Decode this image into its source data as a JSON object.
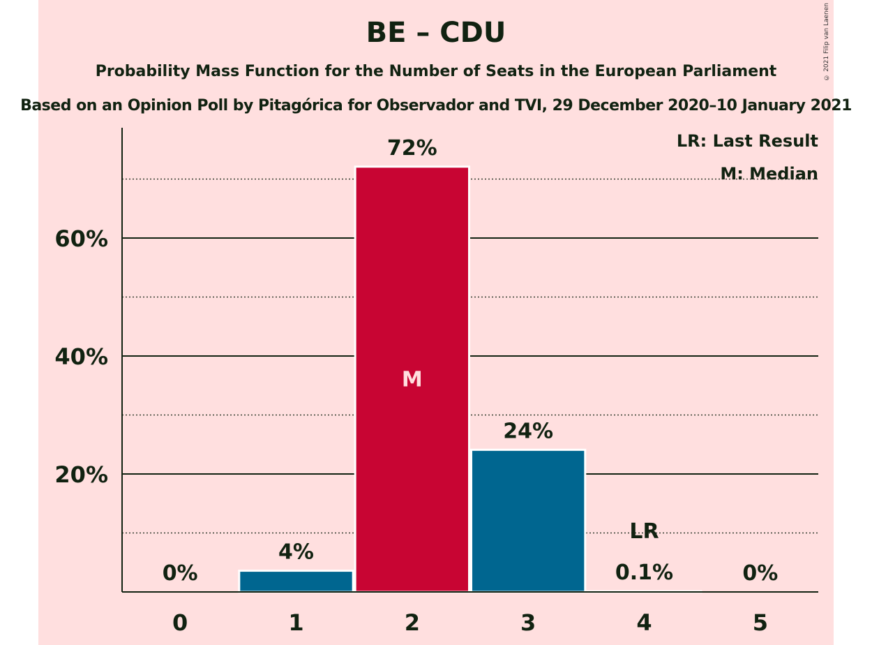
{
  "title": "BE – CDU",
  "subtitle": "Probability Mass Function for the Number of Seats in the European Parliament",
  "subtitle2": "Based on an Opinion Poll by Pitagórica for Observador and TVI, 29 December 2020–10 January 2021",
  "copyright": "© 2021 Filip van Laenen",
  "colors": {
    "background": "#ffdfdf",
    "bar_default": "#006690",
    "bar_median": "#c80533",
    "text": "#112211"
  },
  "chart_data": {
    "type": "bar",
    "categories": [
      "0",
      "1",
      "2",
      "3",
      "4",
      "5"
    ],
    "values": [
      0,
      3.6,
      72.1,
      24.1,
      0.1,
      0
    ],
    "value_labels": [
      "0%",
      "4%",
      "72%",
      "24%",
      "0.1%",
      "0%"
    ],
    "ylim": [
      0,
      78
    ],
    "y_ticks": [
      20,
      40,
      60
    ],
    "y_tick_labels": [
      "20%",
      "40%",
      "60%"
    ],
    "y_minor_gridlines": [
      10,
      30,
      50,
      70
    ],
    "median_category": "2",
    "median_marker": "M",
    "last_result_category": "4",
    "last_result_marker": "LR",
    "legend": [
      "LR: Last Result",
      "M: Median"
    ],
    "legend_position": "top-right",
    "grid": true
  }
}
